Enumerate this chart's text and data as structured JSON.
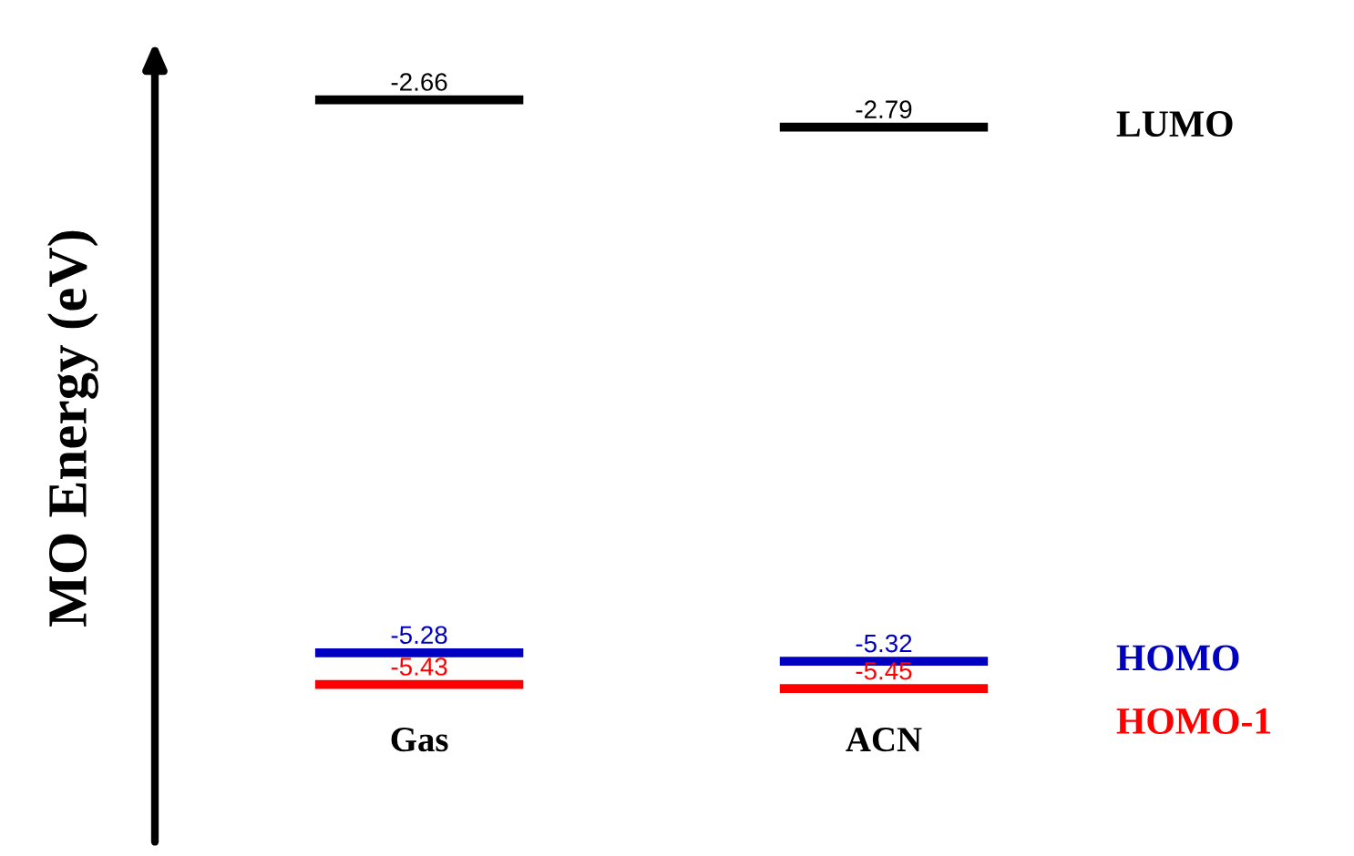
{
  "chart_data": {
    "type": "other",
    "ylabel": "MO Energy (eV)",
    "categories": [
      "Gas",
      "ACN"
    ],
    "data_labels": true,
    "series": [
      {
        "name": "LUMO",
        "color": "#000000",
        "values": [
          -2.66,
          -2.79
        ]
      },
      {
        "name": "HOMO",
        "color": "#0000c0",
        "values": [
          -5.28,
          -5.32
        ]
      },
      {
        "name": "HOMO-1",
        "color": "#ff0000",
        "values": [
          -5.43,
          -5.45
        ]
      }
    ]
  }
}
